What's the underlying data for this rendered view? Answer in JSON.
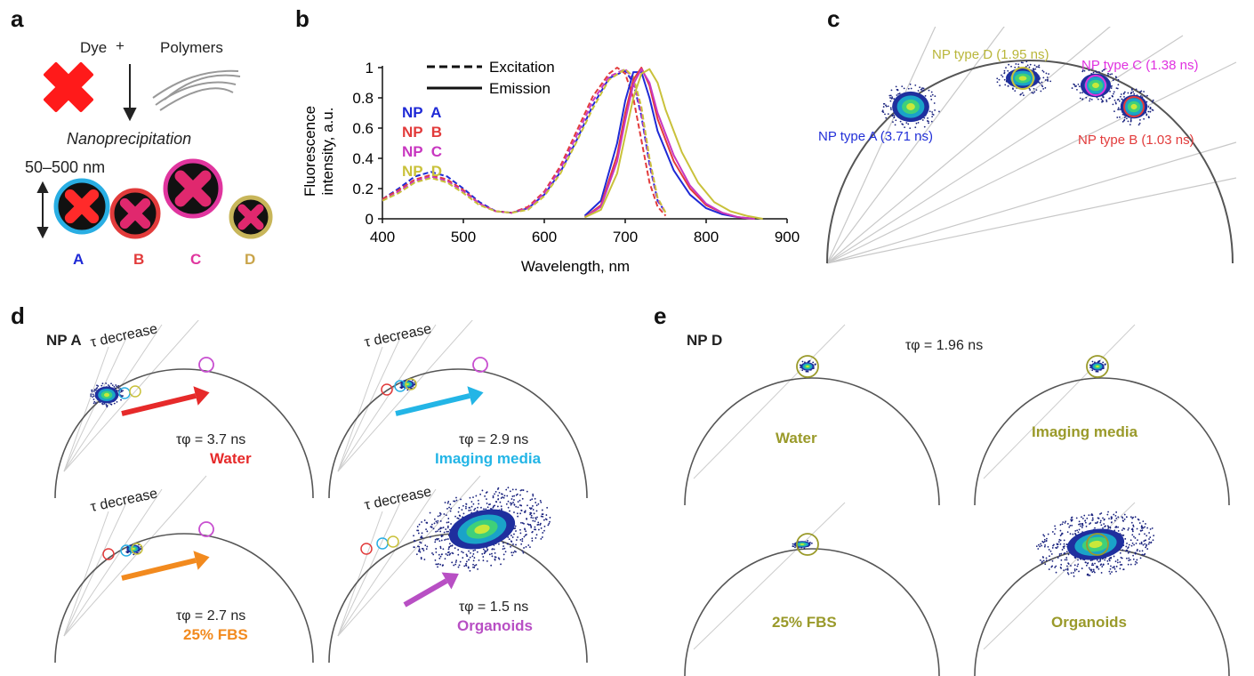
{
  "panels": {
    "a": {
      "label": "a",
      "dye": "Dye",
      "plus": "+",
      "polymers": "Polymers",
      "process": "Nanoprecipitation",
      "size": "50–500 nm",
      "particles": [
        {
          "id": "A",
          "ring_color": "#29aee3",
          "label_color": "#1f2ad6"
        },
        {
          "id": "B",
          "ring_color": "#e23b3b",
          "label_color": "#e23b3b"
        },
        {
          "id": "C",
          "ring_color": "#e0359e",
          "label_color": "#e0359e"
        },
        {
          "id": "D",
          "ring_color": "#c8b65a",
          "label_color": "#c9a44a"
        }
      ],
      "icons": [
        "dye-cross-icon",
        "polymer-strands-icon",
        "down-arrow-icon",
        "double-arrow-icon"
      ]
    },
    "b": {
      "label": "b",
      "legend_excitation": "Excitation",
      "legend_emission": "Emission",
      "series_labels": [
        {
          "text": "NP  A",
          "color": "#1f2ad6"
        },
        {
          "text": "NP  B",
          "color": "#e23b3b"
        },
        {
          "text": "NP  C",
          "color": "#c837c0"
        },
        {
          "text": "NP  D",
          "color": "#c9c13a"
        }
      ],
      "ylabel_line1": "Fluorescence",
      "ylabel_line2": "intensity, a.u.",
      "xlabel": "Wavelength, nm",
      "xticks": [
        "400",
        "500",
        "600",
        "700",
        "800",
        "900"
      ],
      "yticks": [
        "0",
        "0.2",
        "0.4",
        "0.6",
        "0.8",
        "1"
      ]
    },
    "c": {
      "label": "c",
      "annotations": [
        {
          "text": "NP type D (1.95 ns)",
          "color": "#b9b63a"
        },
        {
          "text": "NP type C (1.38 ns)",
          "color": "#e032e0"
        },
        {
          "text": "NP type A (3.71 ns)",
          "color": "#2230d8"
        },
        {
          "text": "NP type B (1.03 ns)",
          "color": "#e23b3b"
        }
      ]
    },
    "d": {
      "label": "d",
      "title": "NP A",
      "arrow_text": "τ decrease",
      "subpanels": [
        {
          "tau": "τφ = 3.7 ns",
          "medium": "Water",
          "color": "#e62a2a"
        },
        {
          "tau": "τφ = 2.9 ns",
          "medium": "Imaging media",
          "color": "#23b5e6"
        },
        {
          "tau": "τφ = 2.7 ns",
          "medium": "25% FBS",
          "color": "#f28a1e"
        },
        {
          "tau": "τφ = 1.5 ns",
          "medium": "Organoids",
          "color": "#b84fc4"
        }
      ]
    },
    "e": {
      "label": "e",
      "title": "NP D",
      "tau": "τφ = 1.96 ns",
      "subpanels": [
        {
          "medium": "Water",
          "color": "#9a9a2a"
        },
        {
          "medium": "Imaging media",
          "color": "#9a9a2a"
        },
        {
          "medium": "25% FBS",
          "color": "#9a9a2a"
        },
        {
          "medium": "Organoids",
          "color": "#9a9a2a"
        }
      ]
    }
  },
  "chart_data": {
    "type": "line",
    "xlabel": "Wavelength, nm",
    "ylabel": "Fluorescence intensity, a.u.",
    "xlim": [
      400,
      900
    ],
    "ylim": [
      0,
      1
    ],
    "legend": [
      "Excitation",
      "Emission"
    ],
    "series": [
      {
        "name": "NP  A",
        "kind": "Excitation",
        "color": "#1f2ad6",
        "x": [
          400,
          420,
          440,
          460,
          480,
          500,
          520,
          540,
          560,
          580,
          600,
          620,
          640,
          660,
          680,
          700,
          710,
          720,
          730,
          740,
          750
        ],
        "y": [
          0.13,
          0.2,
          0.28,
          0.31,
          0.28,
          0.2,
          0.11,
          0.05,
          0.04,
          0.07,
          0.16,
          0.31,
          0.52,
          0.75,
          0.93,
          0.98,
          0.9,
          0.68,
          0.36,
          0.12,
          0.04
        ]
      },
      {
        "name": "NP  B",
        "kind": "Excitation",
        "color": "#e23b3b",
        "x": [
          400,
          420,
          440,
          460,
          480,
          500,
          520,
          540,
          560,
          580,
          600,
          620,
          640,
          660,
          680,
          690,
          700,
          710,
          720,
          730,
          740,
          750
        ],
        "y": [
          0.13,
          0.19,
          0.26,
          0.29,
          0.26,
          0.19,
          0.1,
          0.05,
          0.04,
          0.08,
          0.18,
          0.35,
          0.58,
          0.81,
          0.96,
          1.0,
          0.96,
          0.8,
          0.52,
          0.24,
          0.08,
          0.02
        ]
      },
      {
        "name": "NP  C",
        "kind": "Excitation",
        "color": "#c837c0",
        "x": [
          400,
          420,
          440,
          460,
          480,
          500,
          520,
          540,
          560,
          580,
          600,
          620,
          640,
          660,
          680,
          700,
          710,
          720,
          730,
          740,
          750
        ],
        "y": [
          0.12,
          0.18,
          0.25,
          0.28,
          0.25,
          0.18,
          0.1,
          0.05,
          0.04,
          0.07,
          0.17,
          0.33,
          0.55,
          0.78,
          0.94,
          0.99,
          0.92,
          0.7,
          0.38,
          0.13,
          0.04
        ]
      },
      {
        "name": "NP  D",
        "kind": "Excitation",
        "color": "#c9c13a",
        "x": [
          400,
          420,
          440,
          460,
          480,
          500,
          520,
          540,
          560,
          580,
          600,
          620,
          640,
          660,
          680,
          700,
          710,
          720,
          730,
          740,
          750
        ],
        "y": [
          0.12,
          0.17,
          0.24,
          0.27,
          0.24,
          0.17,
          0.09,
          0.05,
          0.04,
          0.06,
          0.15,
          0.3,
          0.51,
          0.73,
          0.92,
          0.99,
          0.94,
          0.74,
          0.4,
          0.14,
          0.04
        ]
      },
      {
        "name": "NP  A",
        "kind": "Emission",
        "color": "#1f2ad6",
        "x": [
          650,
          670,
          690,
          700,
          710,
          720,
          730,
          740,
          760,
          780,
          800,
          820,
          840,
          860
        ],
        "y": [
          0.02,
          0.12,
          0.5,
          0.78,
          0.97,
          0.97,
          0.8,
          0.58,
          0.32,
          0.16,
          0.07,
          0.03,
          0.01,
          0.0
        ]
      },
      {
        "name": "NP  B",
        "kind": "Emission",
        "color": "#e23b3b",
        "x": [
          650,
          670,
          690,
          700,
          710,
          720,
          730,
          740,
          760,
          780,
          800,
          820,
          840,
          860
        ],
        "y": [
          0.01,
          0.09,
          0.42,
          0.7,
          0.92,
          1.0,
          0.88,
          0.66,
          0.38,
          0.2,
          0.09,
          0.04,
          0.01,
          0.0
        ]
      },
      {
        "name": "NP  C",
        "kind": "Emission",
        "color": "#c837c0",
        "x": [
          650,
          670,
          690,
          700,
          710,
          720,
          730,
          740,
          760,
          780,
          800,
          820,
          840,
          860
        ],
        "y": [
          0.01,
          0.08,
          0.38,
          0.65,
          0.89,
          0.99,
          0.9,
          0.7,
          0.42,
          0.22,
          0.1,
          0.04,
          0.01,
          0.0
        ]
      },
      {
        "name": "NP  D",
        "kind": "Emission",
        "color": "#c9c13a",
        "x": [
          650,
          670,
          690,
          710,
          720,
          730,
          740,
          750,
          770,
          790,
          810,
          830,
          850,
          870
        ],
        "y": [
          0.01,
          0.06,
          0.3,
          0.8,
          0.96,
          0.99,
          0.9,
          0.72,
          0.44,
          0.24,
          0.11,
          0.05,
          0.02,
          0.0
        ]
      }
    ]
  }
}
